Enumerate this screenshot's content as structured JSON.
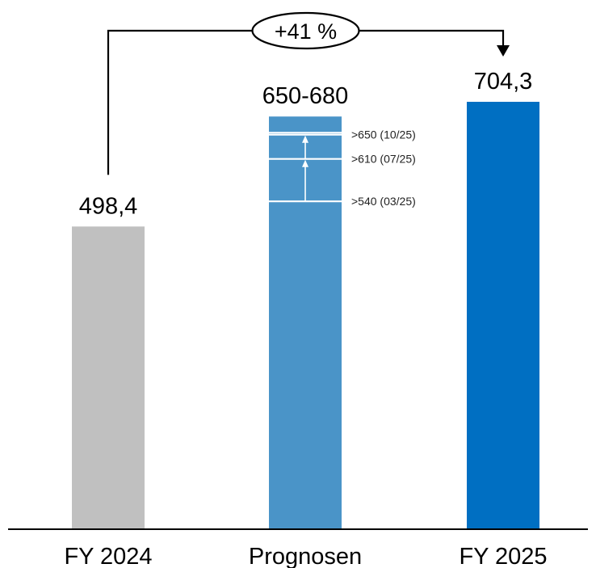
{
  "chart_data": {
    "type": "bar",
    "categories": [
      "FY 2024",
      "Prognosen",
      "FY 2025"
    ],
    "values": [
      498.4,
      680,
      704.3
    ],
    "value_labels": [
      "498,4",
      "650-680",
      "704,3"
    ],
    "forecast_range": [
      650,
      680
    ],
    "bar_colors": [
      "#c0c0c0",
      "#4a94c8",
      "#006fc2"
    ],
    "forecast_steps": [
      {
        "value": 540,
        "label": ">540 (03/25)"
      },
      {
        "value": 610,
        "label": ">610 (07/25)"
      },
      {
        "value": 650,
        "label": ">650 (10/25)"
      }
    ],
    "growth_label": "+41 %",
    "ylim": [
      0,
      704.3
    ],
    "grid": false,
    "axis_line_color": "#000000"
  }
}
